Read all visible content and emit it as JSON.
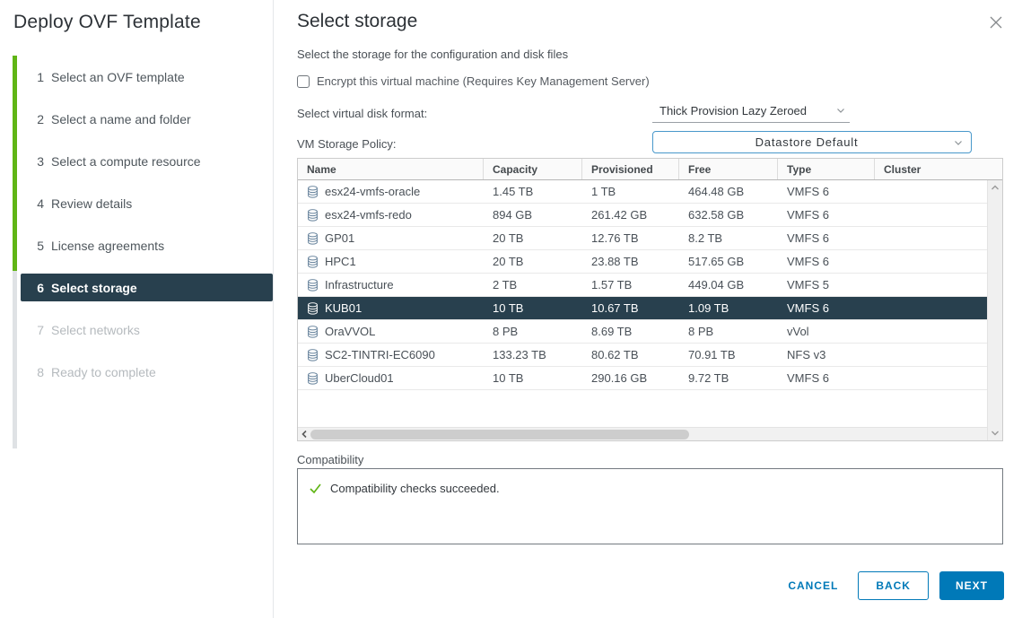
{
  "colors": {
    "accent": "#0079b8",
    "progress_green": "#60b515",
    "selection_navy": "#28404e",
    "check_green": "#60b515"
  },
  "icons": {
    "close": "x-cross",
    "datastore": "database-cylinder",
    "compat_check": "green-checkmark",
    "dropdown_chevron": "chevron-down",
    "scroll_up": "chevron-up",
    "scroll_down": "chevron-down",
    "scroll_left": "chevron-left"
  },
  "wizard": {
    "title": "Deploy OVF Template",
    "steps": [
      {
        "num": "1",
        "label": "Select an OVF template",
        "status": "done"
      },
      {
        "num": "2",
        "label": "Select a name and folder",
        "status": "done"
      },
      {
        "num": "3",
        "label": "Select a compute resource",
        "status": "done"
      },
      {
        "num": "4",
        "label": "Review details",
        "status": "done"
      },
      {
        "num": "5",
        "label": "License agreements",
        "status": "done"
      },
      {
        "num": "6",
        "label": "Select storage",
        "status": "active"
      },
      {
        "num": "7",
        "label": "Select networks",
        "status": "todo"
      },
      {
        "num": "8",
        "label": "Ready to complete",
        "status": "todo"
      }
    ]
  },
  "panel": {
    "title": "Select storage",
    "subtitle": "Select the storage for the configuration and disk files",
    "encrypt_label": "Encrypt this virtual machine (Requires Key Management Server)",
    "encrypt_checked": false,
    "disk_format_label": "Select virtual disk format:",
    "disk_format_value": "Thick Provision Lazy Zeroed",
    "policy_label": "VM Storage Policy:",
    "policy_value": "Datastore Default"
  },
  "table": {
    "columns": [
      "Name",
      "Capacity",
      "Provisioned",
      "Free",
      "Type",
      "Cluster"
    ],
    "rows": [
      {
        "name": "esx24-vmfs-oracle",
        "capacity": "1.45 TB",
        "provisioned": "1 TB",
        "free": "464.48 GB",
        "type": "VMFS 6",
        "cluster": "",
        "selected": false
      },
      {
        "name": "esx24-vmfs-redo",
        "capacity": "894 GB",
        "provisioned": "261.42 GB",
        "free": "632.58 GB",
        "type": "VMFS 6",
        "cluster": "",
        "selected": false
      },
      {
        "name": "GP01",
        "capacity": "20 TB",
        "provisioned": "12.76 TB",
        "free": "8.2 TB",
        "type": "VMFS 6",
        "cluster": "",
        "selected": false
      },
      {
        "name": "HPC1",
        "capacity": "20 TB",
        "provisioned": "23.88 TB",
        "free": "517.65 GB",
        "type": "VMFS 6",
        "cluster": "",
        "selected": false
      },
      {
        "name": "Infrastructure",
        "capacity": "2 TB",
        "provisioned": "1.57 TB",
        "free": "449.04 GB",
        "type": "VMFS 5",
        "cluster": "",
        "selected": false
      },
      {
        "name": "KUB01",
        "capacity": "10 TB",
        "provisioned": "10.67 TB",
        "free": "1.09 TB",
        "type": "VMFS 6",
        "cluster": "",
        "selected": true
      },
      {
        "name": "OraVVOL",
        "capacity": "8 PB",
        "provisioned": "8.69 TB",
        "free": "8 PB",
        "type": "vVol",
        "cluster": "",
        "selected": false
      },
      {
        "name": "SC2-TINTRI-EC6090",
        "capacity": "133.23 TB",
        "provisioned": "80.62 TB",
        "free": "70.91 TB",
        "type": "NFS v3",
        "cluster": "",
        "selected": false
      },
      {
        "name": "UberCloud01",
        "capacity": "10 TB",
        "provisioned": "290.16 GB",
        "free": "9.72 TB",
        "type": "VMFS 6",
        "cluster": "",
        "selected": false
      }
    ]
  },
  "compatibility": {
    "label": "Compatibility",
    "message": "Compatibility checks succeeded."
  },
  "footer": {
    "cancel": "CANCEL",
    "back": "BACK",
    "next": "NEXT"
  }
}
